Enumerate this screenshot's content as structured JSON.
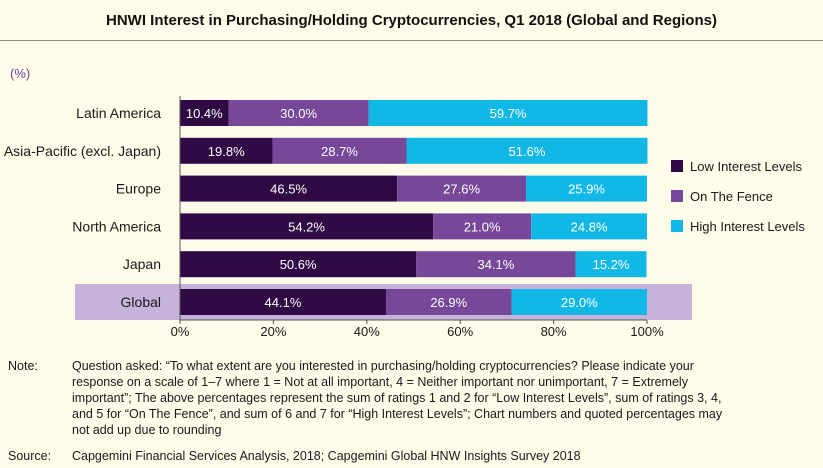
{
  "title": "HNWI Interest in Purchasing/Holding Cryptocurrencies, Q1 2018 (Global and Regions)",
  "unit": "(%)",
  "colors": {
    "background": "#fffbe9",
    "low": "#2f0a44",
    "fence": "#77479a",
    "high": "#11b8e5",
    "highlight": "#c5b3dc",
    "unit_text": "#6a3fa0"
  },
  "chart_data": {
    "type": "bar",
    "orientation": "horizontal",
    "stacked": true,
    "categories": [
      "Latin America",
      "Asia-Pacific (excl. Japan)",
      "Europe",
      "North America",
      "Japan",
      "Global"
    ],
    "series": [
      {
        "name": "Low Interest Levels",
        "values": [
          10.4,
          19.8,
          46.5,
          54.2,
          50.6,
          44.1
        ],
        "labels": [
          "10.4%",
          "19.8%",
          "46.5%",
          "54.2%",
          "50.6%",
          "44.1%"
        ]
      },
      {
        "name": "On The Fence",
        "values": [
          30.0,
          28.7,
          27.6,
          21.0,
          34.1,
          26.9
        ],
        "labels": [
          "30.0%",
          "28.7%",
          "27.6%",
          "21.0%",
          "34.1%",
          "26.9%"
        ]
      },
      {
        "name": "High Interest Levels",
        "values": [
          59.7,
          51.6,
          25.9,
          24.8,
          15.2,
          29.0
        ],
        "labels": [
          "59.7%",
          "51.6%",
          "25.9%",
          "24.8%",
          "15.2%",
          "29.0%"
        ]
      }
    ],
    "xlim": [
      0,
      100
    ],
    "ticks": [
      "0%",
      "20%",
      "40%",
      "60%",
      "80%",
      "100%"
    ],
    "highlighted_category": "Global",
    "legend_position": "right",
    "grid": false
  },
  "notes": {
    "note_label": "Note:",
    "note_lines": [
      "Question asked: “To what extent are you interested in purchasing/holding cryptocurrencies? Please indicate your",
      "response on a scale of 1–7 where 1 = Not at all important, 4 = Neither important nor unimportant, 7 = Extremely",
      "important”; The above percentages represent the sum of ratings 1 and 2 for “Low Interest Levels”,  sum of ratings 3, 4,",
      "and 5 for “On The Fence”, and sum of 6 and 7 for “High Interest Levels”;  Chart numbers and quoted percentages may",
      "not add up due to rounding"
    ],
    "source_label": "Source:",
    "source_text": "Capgemini Financial Services Analysis, 2018; Capgemini Global HNW Insights Survey 2018"
  }
}
